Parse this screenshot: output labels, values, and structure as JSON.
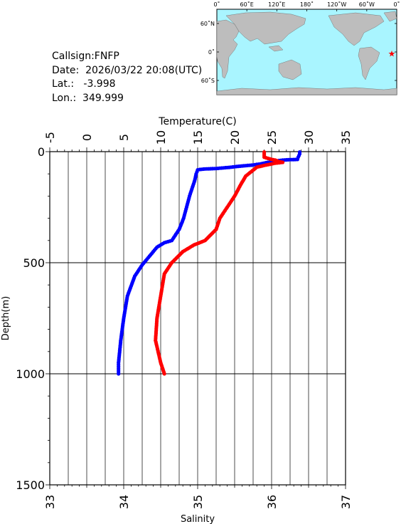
{
  "meta": {
    "callsign": "Callsign:FNFP",
    "date": "Date:  2026/03/22 20:08(UTC)",
    "lat": "Lat.:   -3.998",
    "lon": "Lon.:  349.999"
  },
  "map": {
    "top_labels": [
      "0˚",
      "60˚E",
      "120˚E",
      "180˚",
      "120˚W",
      "60˚W",
      "0˚"
    ],
    "side_labels": [
      "60˚N",
      "0˚",
      "60˚S"
    ],
    "station_lon": 349.999,
    "station_lat": -3.998,
    "colors": {
      "ocean": "#a9f5ff",
      "land": "#bdbdbd",
      "marker": "#ff0000"
    }
  },
  "chart_data": {
    "type": "line",
    "title": "",
    "x_top_label": "Temperature(C)",
    "x_bottom_label": "Salinity",
    "ylabel": "Depth(m)",
    "ylim": [
      0,
      1500
    ],
    "y_inverted": true,
    "temp_lim": [
      -5,
      35
    ],
    "sal_lim": [
      33,
      37
    ],
    "temp_ticks": [
      "-5",
      "0",
      "5",
      "10",
      "15",
      "20",
      "25",
      "30",
      "35"
    ],
    "sal_ticks": [
      "33",
      "34",
      "35",
      "36",
      "37"
    ],
    "depth_ticks": [
      "0",
      "500",
      "1000",
      "1500"
    ],
    "grid": true,
    "series": [
      {
        "axis": "temperature",
        "color": "#0000ff",
        "points": [
          [
            28.8,
            2
          ],
          [
            28.8,
            10
          ],
          [
            28.6,
            25
          ],
          [
            28.5,
            35
          ],
          [
            27.5,
            36
          ],
          [
            26.5,
            38
          ],
          [
            25.5,
            42
          ],
          [
            24.5,
            48
          ],
          [
            23.5,
            55
          ],
          [
            22.5,
            60
          ],
          [
            21.5,
            63
          ],
          [
            20.5,
            66
          ],
          [
            19.5,
            70
          ],
          [
            18.5,
            73
          ],
          [
            17.5,
            76
          ],
          [
            16.0,
            78
          ],
          [
            15.3,
            80
          ],
          [
            15.0,
            82
          ],
          [
            14.8,
            100
          ],
          [
            14.6,
            130
          ],
          [
            14.3,
            160
          ],
          [
            13.9,
            200
          ],
          [
            13.5,
            250
          ],
          [
            13.1,
            300
          ],
          [
            12.5,
            350
          ],
          [
            11.5,
            400
          ],
          [
            10.5,
            410
          ],
          [
            9.5,
            430
          ],
          [
            8.5,
            470
          ],
          [
            7.5,
            510
          ],
          [
            6.5,
            560
          ],
          [
            5.5,
            650
          ],
          [
            5.0,
            750
          ],
          [
            4.6,
            850
          ],
          [
            4.3,
            950
          ],
          [
            4.3,
            1000
          ]
        ]
      },
      {
        "axis": "salinity",
        "color": "#ff0000",
        "points": [
          [
            35.9,
            2
          ],
          [
            35.9,
            10
          ],
          [
            35.9,
            25
          ],
          [
            36.0,
            35
          ],
          [
            36.05,
            38
          ],
          [
            36.1,
            45
          ],
          [
            36.15,
            48
          ],
          [
            36.05,
            52
          ],
          [
            35.9,
            62
          ],
          [
            35.8,
            70
          ],
          [
            35.65,
            110
          ],
          [
            35.58,
            150
          ],
          [
            35.5,
            200
          ],
          [
            35.4,
            250
          ],
          [
            35.3,
            300
          ],
          [
            35.25,
            350
          ],
          [
            35.1,
            400
          ],
          [
            34.95,
            420
          ],
          [
            34.8,
            450
          ],
          [
            34.65,
            500
          ],
          [
            34.55,
            550
          ],
          [
            34.5,
            650
          ],
          [
            34.45,
            750
          ],
          [
            34.43,
            850
          ],
          [
            34.5,
            950
          ],
          [
            34.55,
            1000
          ]
        ]
      }
    ]
  }
}
